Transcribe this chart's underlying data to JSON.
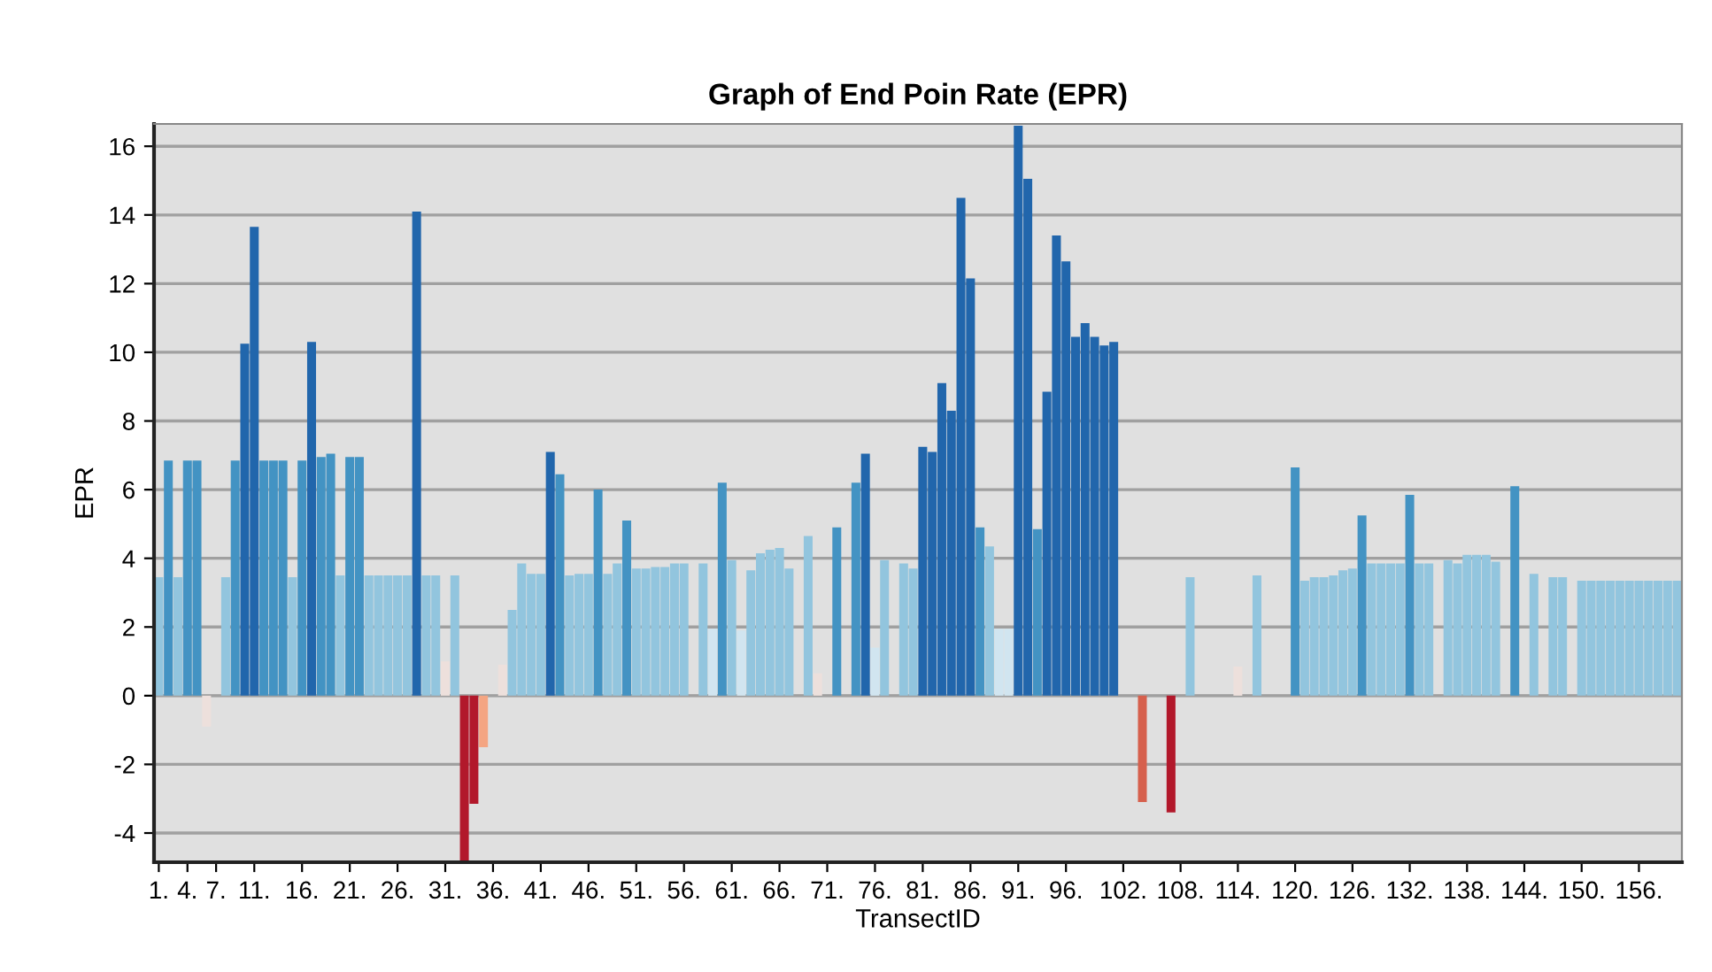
{
  "chart_data": {
    "type": "bar",
    "title": "Graph of End Poin Rate (EPR)",
    "xlabel": "TransectID",
    "ylabel": "EPR",
    "categories": [
      "1.",
      null,
      null,
      "4.",
      null,
      null,
      "7.",
      null,
      null,
      null,
      "11.",
      null,
      null,
      null,
      null,
      "16.",
      null,
      null,
      null,
      null,
      "21.",
      null,
      null,
      null,
      null,
      "26.",
      null,
      null,
      null,
      null,
      "31.",
      null,
      null,
      null,
      null,
      "36.",
      null,
      null,
      null,
      null,
      "41.",
      null,
      null,
      null,
      null,
      "46.",
      null,
      null,
      null,
      null,
      "51.",
      null,
      null,
      null,
      null,
      "56.",
      null,
      null,
      null,
      null,
      "61.",
      null,
      null,
      null,
      null,
      "66.",
      null,
      null,
      null,
      null,
      "71.",
      null,
      null,
      null,
      null,
      "76.",
      null,
      null,
      null,
      null,
      "81.",
      null,
      null,
      null,
      null,
      "86.",
      null,
      null,
      null,
      null,
      "91.",
      null,
      null,
      null,
      null,
      "96.",
      null,
      null,
      null,
      null,
      null,
      "102.",
      null,
      null,
      null,
      null,
      null,
      "108.",
      null,
      null,
      null,
      null,
      null,
      "114.",
      null,
      null,
      null,
      null,
      null,
      "120.",
      null,
      null,
      null,
      null,
      null,
      "126.",
      null,
      null,
      null,
      null,
      null,
      "132.",
      null,
      null,
      null,
      null,
      null,
      "138.",
      null,
      null,
      null,
      null,
      null,
      "144.",
      null,
      null,
      null,
      null,
      null,
      "150.",
      null,
      null,
      null,
      null,
      null,
      "156.",
      null,
      null,
      null,
      null
    ],
    "values": [
      3.45,
      6.85,
      3.45,
      6.85,
      6.85,
      -0.9,
      null,
      3.45,
      6.85,
      10.25,
      13.65,
      6.85,
      6.85,
      6.85,
      3.45,
      6.85,
      10.3,
      6.95,
      7.05,
      3.5,
      6.95,
      6.95,
      3.5,
      3.5,
      3.5,
      3.5,
      3.5,
      14.1,
      3.5,
      3.5,
      1.0,
      3.5,
      -4.8,
      -3.15,
      -1.5,
      null,
      0.9,
      2.5,
      3.85,
      3.55,
      3.55,
      7.1,
      6.45,
      3.5,
      3.55,
      3.55,
      6.0,
      3.55,
      3.85,
      5.1,
      3.7,
      3.7,
      3.75,
      3.75,
      3.85,
      3.85,
      null,
      3.85,
      1.95,
      6.2,
      3.95,
      1.9,
      3.65,
      4.15,
      4.25,
      4.3,
      3.7,
      null,
      4.65,
      0.65,
      null,
      4.9,
      null,
      6.2,
      7.05,
      1.4,
      3.95,
      null,
      3.85,
      3.7,
      7.25,
      7.1,
      9.1,
      8.3,
      14.5,
      12.15,
      4.9,
      4.35,
      1.95,
      1.95,
      16.6,
      15.05,
      4.85,
      8.85,
      13.4,
      12.65,
      10.45,
      10.85,
      10.45,
      10.2,
      10.3,
      null,
      null,
      -3.1,
      null,
      null,
      -3.4,
      null,
      3.45,
      null,
      null,
      null,
      null,
      0.85,
      null,
      3.5,
      null,
      null,
      null,
      6.65,
      3.35,
      3.45,
      3.45,
      3.5,
      3.65,
      3.7,
      5.25,
      3.85,
      3.85,
      3.85,
      3.85,
      5.85,
      3.85,
      3.85,
      null,
      3.95,
      3.85,
      4.1,
      4.1,
      4.1,
      3.9,
      null,
      6.1,
      null,
      3.55,
      null,
      3.45,
      3.45,
      null,
      3.35,
      3.35,
      3.35,
      3.35,
      3.35,
      3.35,
      3.35,
      3.35,
      3.35,
      3.35,
      3.35
    ],
    "colors": [
      "#92c5de",
      "#4393c3",
      "#92c5de",
      "#4393c3",
      "#4393c3",
      "#ede0dc",
      null,
      "#92c5de",
      "#4393c3",
      "#2166ac",
      "#2166ac",
      "#4393c3",
      "#4393c3",
      "#4393c3",
      "#92c5de",
      "#4393c3",
      "#2166ac",
      "#4393c3",
      "#4393c3",
      "#92c5de",
      "#4393c3",
      "#4393c3",
      "#92c5de",
      "#92c5de",
      "#92c5de",
      "#92c5de",
      "#92c5de",
      "#2166ac",
      "#92c5de",
      "#92c5de",
      "#ede0dc",
      "#92c5de",
      "#b2182b",
      "#b2182b",
      "#f4a582",
      null,
      "#ede0dc",
      "#92c5de",
      "#92c5de",
      "#92c5de",
      "#92c5de",
      "#2166ac",
      "#4393c3",
      "#92c5de",
      "#92c5de",
      "#92c5de",
      "#4393c3",
      "#92c5de",
      "#92c5de",
      "#4393c3",
      "#92c5de",
      "#92c5de",
      "#92c5de",
      "#92c5de",
      "#92c5de",
      "#92c5de",
      null,
      "#92c5de",
      "#d1e5f0",
      "#4393c3",
      "#92c5de",
      "#d1e5f0",
      "#92c5de",
      "#92c5de",
      "#92c5de",
      "#92c5de",
      "#92c5de",
      null,
      "#92c5de",
      "#ede0dc",
      null,
      "#4393c3",
      null,
      "#4393c3",
      "#2166ac",
      "#d1e5f0",
      "#92c5de",
      null,
      "#92c5de",
      "#92c5de",
      "#2166ac",
      "#2166ac",
      "#2166ac",
      "#2166ac",
      "#2166ac",
      "#2166ac",
      "#4393c3",
      "#92c5de",
      "#d1e5f0",
      "#d1e5f0",
      "#2166ac",
      "#2166ac",
      "#4393c3",
      "#2166ac",
      "#2166ac",
      "#2166ac",
      "#2166ac",
      "#2166ac",
      "#2166ac",
      "#2166ac",
      "#2166ac",
      null,
      null,
      "#d6604d",
      null,
      null,
      "#b2182b",
      null,
      "#92c5de",
      null,
      null,
      null,
      null,
      "#ede0dc",
      null,
      "#92c5de",
      null,
      null,
      null,
      "#4393c3",
      "#92c5de",
      "#92c5de",
      "#92c5de",
      "#92c5de",
      "#92c5de",
      "#92c5de",
      "#4393c3",
      "#92c5de",
      "#92c5de",
      "#92c5de",
      "#92c5de",
      "#4393c3",
      "#92c5de",
      "#92c5de",
      null,
      "#92c5de",
      "#92c5de",
      "#92c5de",
      "#92c5de",
      "#92c5de",
      "#92c5de",
      null,
      "#4393c3",
      null,
      "#92c5de",
      null,
      "#92c5de",
      "#92c5de",
      null,
      "#92c5de",
      "#92c5de",
      "#92c5de",
      "#92c5de",
      "#92c5de",
      "#92c5de",
      "#92c5de",
      "#92c5de",
      "#92c5de",
      "#92c5de",
      "#92c5de"
    ],
    "ylim": [
      -4.85,
      16.65
    ],
    "yticks": [
      -4,
      -2,
      0,
      2,
      4,
      6,
      8,
      10,
      12,
      14,
      16
    ],
    "grid": "y"
  }
}
